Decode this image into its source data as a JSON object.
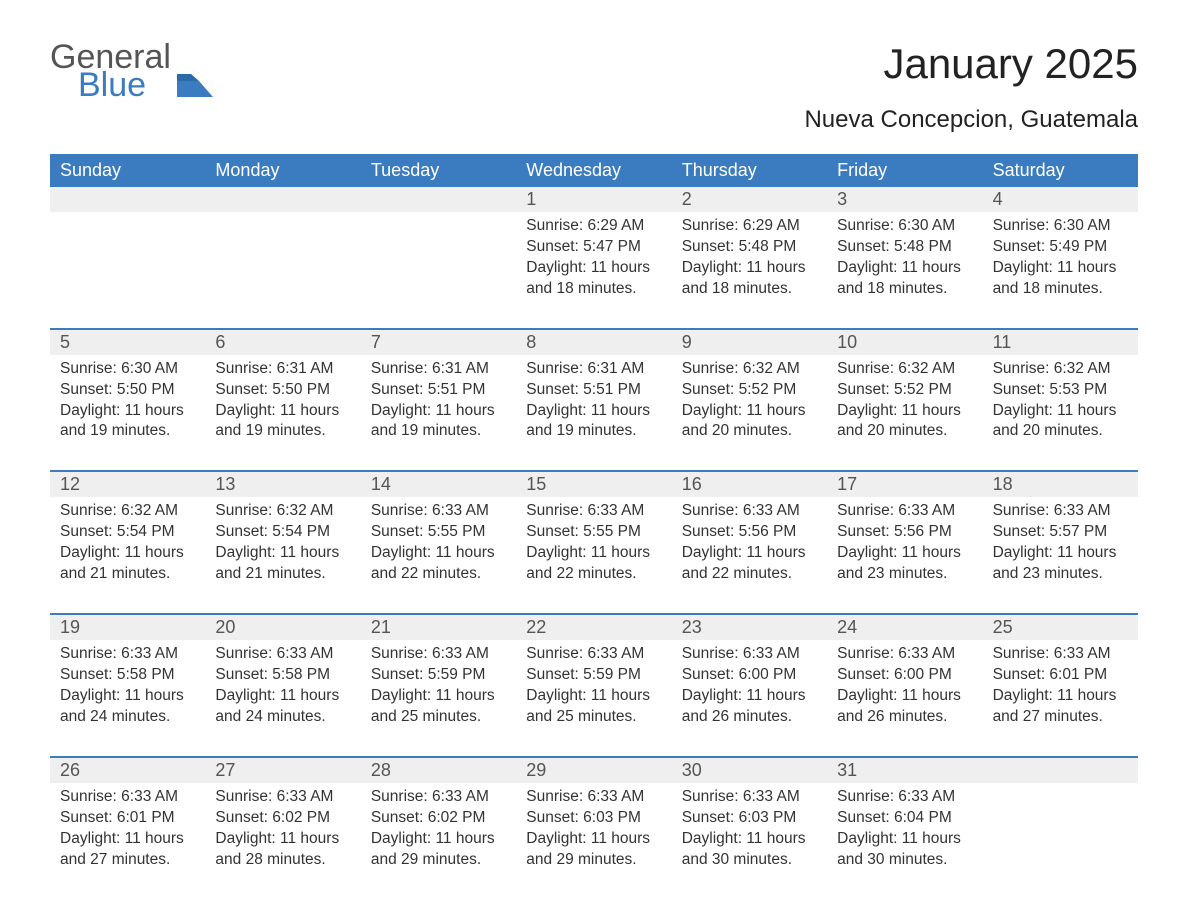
{
  "colors": {
    "brand_blue": "#3b7bbf",
    "row_bg": "#efefef",
    "text": "#333333",
    "header_text": "#ffffff",
    "page_bg": "#ffffff"
  },
  "logo": {
    "line1": "General",
    "line2": "Blue"
  },
  "header": {
    "title": "January 2025",
    "subtitle": "Nueva Concepcion, Guatemala"
  },
  "days_of_week": [
    "Sunday",
    "Monday",
    "Tuesday",
    "Wednesday",
    "Thursday",
    "Friday",
    "Saturday"
  ],
  "labels": {
    "sunrise": "Sunrise",
    "sunset": "Sunset",
    "daylight": "Daylight"
  },
  "weeks": [
    [
      null,
      null,
      null,
      {
        "n": "1",
        "sunrise": "6:29 AM",
        "sunset": "5:47 PM",
        "daylight": "11 hours and 18 minutes."
      },
      {
        "n": "2",
        "sunrise": "6:29 AM",
        "sunset": "5:48 PM",
        "daylight": "11 hours and 18 minutes."
      },
      {
        "n": "3",
        "sunrise": "6:30 AM",
        "sunset": "5:48 PM",
        "daylight": "11 hours and 18 minutes."
      },
      {
        "n": "4",
        "sunrise": "6:30 AM",
        "sunset": "5:49 PM",
        "daylight": "11 hours and 18 minutes."
      }
    ],
    [
      {
        "n": "5",
        "sunrise": "6:30 AM",
        "sunset": "5:50 PM",
        "daylight": "11 hours and 19 minutes."
      },
      {
        "n": "6",
        "sunrise": "6:31 AM",
        "sunset": "5:50 PM",
        "daylight": "11 hours and 19 minutes."
      },
      {
        "n": "7",
        "sunrise": "6:31 AM",
        "sunset": "5:51 PM",
        "daylight": "11 hours and 19 minutes."
      },
      {
        "n": "8",
        "sunrise": "6:31 AM",
        "sunset": "5:51 PM",
        "daylight": "11 hours and 19 minutes."
      },
      {
        "n": "9",
        "sunrise": "6:32 AM",
        "sunset": "5:52 PM",
        "daylight": "11 hours and 20 minutes."
      },
      {
        "n": "10",
        "sunrise": "6:32 AM",
        "sunset": "5:52 PM",
        "daylight": "11 hours and 20 minutes."
      },
      {
        "n": "11",
        "sunrise": "6:32 AM",
        "sunset": "5:53 PM",
        "daylight": "11 hours and 20 minutes."
      }
    ],
    [
      {
        "n": "12",
        "sunrise": "6:32 AM",
        "sunset": "5:54 PM",
        "daylight": "11 hours and 21 minutes."
      },
      {
        "n": "13",
        "sunrise": "6:32 AM",
        "sunset": "5:54 PM",
        "daylight": "11 hours and 21 minutes."
      },
      {
        "n": "14",
        "sunrise": "6:33 AM",
        "sunset": "5:55 PM",
        "daylight": "11 hours and 22 minutes."
      },
      {
        "n": "15",
        "sunrise": "6:33 AM",
        "sunset": "5:55 PM",
        "daylight": "11 hours and 22 minutes."
      },
      {
        "n": "16",
        "sunrise": "6:33 AM",
        "sunset": "5:56 PM",
        "daylight": "11 hours and 22 minutes."
      },
      {
        "n": "17",
        "sunrise": "6:33 AM",
        "sunset": "5:56 PM",
        "daylight": "11 hours and 23 minutes."
      },
      {
        "n": "18",
        "sunrise": "6:33 AM",
        "sunset": "5:57 PM",
        "daylight": "11 hours and 23 minutes."
      }
    ],
    [
      {
        "n": "19",
        "sunrise": "6:33 AM",
        "sunset": "5:58 PM",
        "daylight": "11 hours and 24 minutes."
      },
      {
        "n": "20",
        "sunrise": "6:33 AM",
        "sunset": "5:58 PM",
        "daylight": "11 hours and 24 minutes."
      },
      {
        "n": "21",
        "sunrise": "6:33 AM",
        "sunset": "5:59 PM",
        "daylight": "11 hours and 25 minutes."
      },
      {
        "n": "22",
        "sunrise": "6:33 AM",
        "sunset": "5:59 PM",
        "daylight": "11 hours and 25 minutes."
      },
      {
        "n": "23",
        "sunrise": "6:33 AM",
        "sunset": "6:00 PM",
        "daylight": "11 hours and 26 minutes."
      },
      {
        "n": "24",
        "sunrise": "6:33 AM",
        "sunset": "6:00 PM",
        "daylight": "11 hours and 26 minutes."
      },
      {
        "n": "25",
        "sunrise": "6:33 AM",
        "sunset": "6:01 PM",
        "daylight": "11 hours and 27 minutes."
      }
    ],
    [
      {
        "n": "26",
        "sunrise": "6:33 AM",
        "sunset": "6:01 PM",
        "daylight": "11 hours and 27 minutes."
      },
      {
        "n": "27",
        "sunrise": "6:33 AM",
        "sunset": "6:02 PM",
        "daylight": "11 hours and 28 minutes."
      },
      {
        "n": "28",
        "sunrise": "6:33 AM",
        "sunset": "6:02 PM",
        "daylight": "11 hours and 29 minutes."
      },
      {
        "n": "29",
        "sunrise": "6:33 AM",
        "sunset": "6:03 PM",
        "daylight": "11 hours and 29 minutes."
      },
      {
        "n": "30",
        "sunrise": "6:33 AM",
        "sunset": "6:03 PM",
        "daylight": "11 hours and 30 minutes."
      },
      {
        "n": "31",
        "sunrise": "6:33 AM",
        "sunset": "6:04 PM",
        "daylight": "11 hours and 30 minutes."
      },
      null
    ]
  ]
}
